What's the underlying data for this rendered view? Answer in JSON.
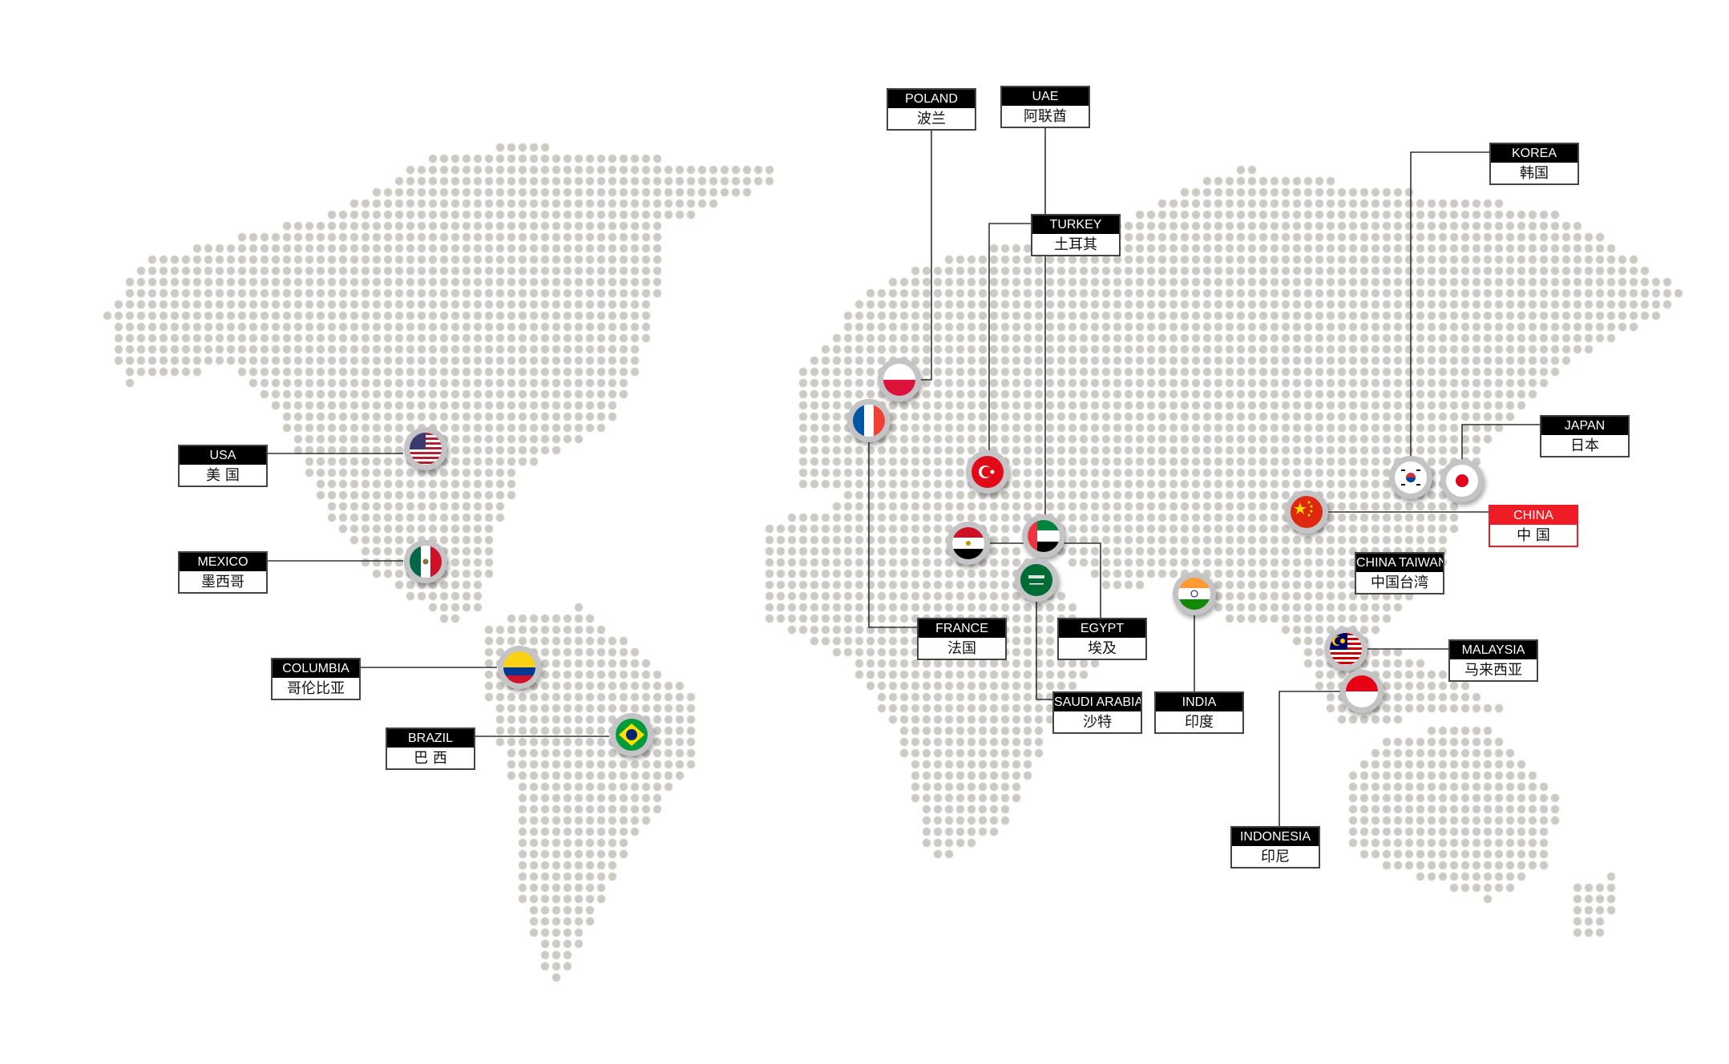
{
  "map": {
    "dot_color": "#cdc9c4",
    "line_color": "#333333",
    "highlight_color": "#ee1c25"
  },
  "countries": [
    {
      "id": "poland",
      "en": "POLAND",
      "zh": "波兰",
      "flag": "poland-flag-icon"
    },
    {
      "id": "uae",
      "en": "UAE",
      "zh": "阿联酋",
      "flag": "uae-flag-icon"
    },
    {
      "id": "turkey",
      "en": "TURKEY",
      "zh": "土耳其",
      "flag": "turkey-flag-icon"
    },
    {
      "id": "korea",
      "en": "KOREA",
      "zh": "韩国",
      "flag": "korea-flag-icon"
    },
    {
      "id": "japan",
      "en": "JAPAN",
      "zh": "日本",
      "flag": "japan-flag-icon"
    },
    {
      "id": "china",
      "en": "CHINA",
      "zh": "中 国",
      "flag": "china-flag-icon",
      "highlight": true
    },
    {
      "id": "china-taiwan",
      "en": "CHINA TAIWAN",
      "zh": "中国台湾"
    },
    {
      "id": "malaysia",
      "en": "MALAYSIA",
      "zh": "马来西亚",
      "flag": "malaysia-flag-icon"
    },
    {
      "id": "indonesia",
      "en": "INDONESIA",
      "zh": "印尼",
      "flag": "indonesia-flag-icon"
    },
    {
      "id": "india",
      "en": "INDIA",
      "zh": "印度",
      "flag": "india-flag-icon"
    },
    {
      "id": "saudi-arabia",
      "en": "SAUDI ARABIA",
      "zh": "沙特",
      "flag": "saudi-flag-icon"
    },
    {
      "id": "egypt",
      "en": "EGYPT",
      "zh": "埃及",
      "flag": "egypt-flag-icon"
    },
    {
      "id": "france",
      "en": "FRANCE",
      "zh": "法国",
      "flag": "france-flag-icon"
    },
    {
      "id": "usa",
      "en": "USA",
      "zh": "美 国",
      "flag": "usa-flag-icon"
    },
    {
      "id": "mexico",
      "en": "MEXICO",
      "zh": "墨西哥",
      "flag": "mexico-flag-icon"
    },
    {
      "id": "columbia",
      "en": "COLUMBIA",
      "zh": "哥伦比亚",
      "flag": "colombia-flag-icon"
    },
    {
      "id": "brazil",
      "en": "BRAZIL",
      "zh": "巴 西",
      "flag": "brazil-flag-icon"
    }
  ]
}
